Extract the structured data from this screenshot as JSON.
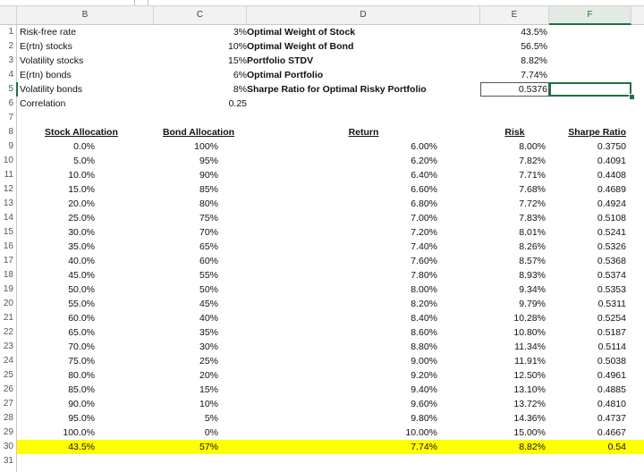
{
  "columns": [
    "B",
    "C",
    "D",
    "E",
    "F"
  ],
  "rows": [
    "1",
    "2",
    "3",
    "4",
    "5",
    "6",
    "7",
    "8",
    "9",
    "10",
    "11",
    "12",
    "13",
    "14",
    "15",
    "16",
    "17",
    "18",
    "19",
    "20",
    "21",
    "22",
    "23",
    "24",
    "25",
    "26",
    "27",
    "28",
    "29",
    "30",
    "31"
  ],
  "inputs": [
    {
      "label": "Risk-free rate",
      "value": "3%"
    },
    {
      "label": "E(rtn) stocks",
      "value": "10%"
    },
    {
      "label": "Volatility stocks",
      "value": "15%"
    },
    {
      "label": "E(rtn) bonds",
      "value": "6%"
    },
    {
      "label": "Volatility bonds",
      "value": "8%"
    },
    {
      "label": "Correlation",
      "value": "0.25"
    }
  ],
  "results": [
    {
      "label": "Optimal Weight of Stock",
      "value": "43.5%"
    },
    {
      "label": "Optimal Weight of Bond",
      "value": "56.5%"
    },
    {
      "label": "Portfolio STDV",
      "value": "8.82%"
    },
    {
      "label": "Optimal Portfolio",
      "value": "7.74%"
    },
    {
      "label": "Sharpe Ratio for Optimal Risky Portfolio",
      "value": "0.5376"
    }
  ],
  "table": {
    "headers": [
      "Stock Allocation",
      "Bond Allocation",
      "Return",
      "Risk",
      "Sharpe Ratio"
    ],
    "rows": [
      [
        "0.0%",
        "100%",
        "6.00%",
        "8.00%",
        "0.3750"
      ],
      [
        "5.0%",
        "95%",
        "6.20%",
        "7.82%",
        "0.4091"
      ],
      [
        "10.0%",
        "90%",
        "6.40%",
        "7.71%",
        "0.4408"
      ],
      [
        "15.0%",
        "85%",
        "6.60%",
        "7.68%",
        "0.4689"
      ],
      [
        "20.0%",
        "80%",
        "6.80%",
        "7.72%",
        "0.4924"
      ],
      [
        "25.0%",
        "75%",
        "7.00%",
        "7.83%",
        "0.5108"
      ],
      [
        "30.0%",
        "70%",
        "7.20%",
        "8.01%",
        "0.5241"
      ],
      [
        "35.0%",
        "65%",
        "7.40%",
        "8.26%",
        "0.5326"
      ],
      [
        "40.0%",
        "60%",
        "7.60%",
        "8.57%",
        "0.5368"
      ],
      [
        "45.0%",
        "55%",
        "7.80%",
        "8.93%",
        "0.5374"
      ],
      [
        "50.0%",
        "50%",
        "8.00%",
        "9.34%",
        "0.5353"
      ],
      [
        "55.0%",
        "45%",
        "8.20%",
        "9.79%",
        "0.5311"
      ],
      [
        "60.0%",
        "40%",
        "8.40%",
        "10.28%",
        "0.5254"
      ],
      [
        "65.0%",
        "35%",
        "8.60%",
        "10.80%",
        "0.5187"
      ],
      [
        "70.0%",
        "30%",
        "8.80%",
        "11.34%",
        "0.5114"
      ],
      [
        "75.0%",
        "25%",
        "9.00%",
        "11.91%",
        "0.5038"
      ],
      [
        "80.0%",
        "20%",
        "9.20%",
        "12.50%",
        "0.4961"
      ],
      [
        "85.0%",
        "15%",
        "9.40%",
        "13.10%",
        "0.4885"
      ],
      [
        "90.0%",
        "10%",
        "9.60%",
        "13.72%",
        "0.4810"
      ],
      [
        "95.0%",
        "5%",
        "9.80%",
        "14.36%",
        "0.4737"
      ],
      [
        "100.0%",
        "0%",
        "10.00%",
        "15.00%",
        "0.4667"
      ]
    ],
    "optimal_row": [
      "43.5%",
      "57%",
      "7.74%",
      "8.82%",
      "0.54"
    ]
  },
  "selection": {
    "cell": "F5",
    "column": "F",
    "row": "5"
  },
  "highlight_color": "#ffff00",
  "selection_color": "#1e7145"
}
